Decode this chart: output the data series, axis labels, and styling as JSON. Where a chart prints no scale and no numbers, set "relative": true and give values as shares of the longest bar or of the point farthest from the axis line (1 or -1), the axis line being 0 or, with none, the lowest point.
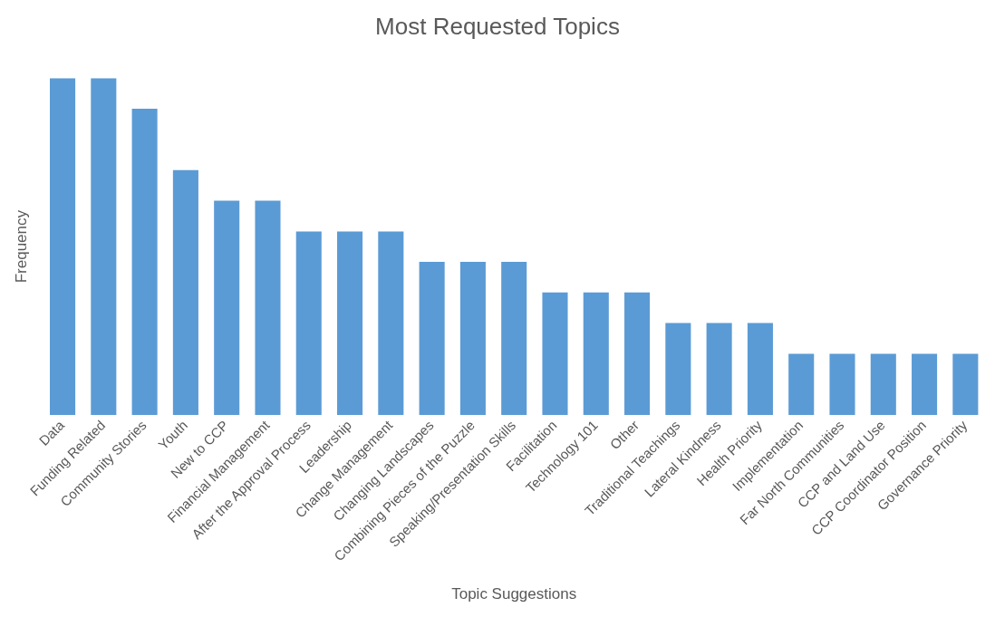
{
  "chart_data": {
    "type": "bar",
    "title": "Most Requested Topics",
    "xlabel": "Topic Suggestions",
    "ylabel": "Frequency",
    "relative": true,
    "color": "#5b9bd5",
    "legend": false,
    "grid": false,
    "categories": [
      "Data",
      "Funding Related",
      "Community Stories",
      "Youth",
      "New to CCP",
      "Financial Management",
      "After the Approval Process",
      "Leadership",
      "Change Management",
      "Changing Landscapes",
      "Combining Pieces of the Puzzle",
      "Speaking/Presentation Skills",
      "Facilitation",
      "Technology 101",
      "Other",
      "Traditional Teachings",
      "Lateral Kindness",
      "Health Priority",
      "Implementation",
      "Far North Communities",
      "CCP and Land Use",
      "CCP Coordinator Position",
      "Governance Priority"
    ],
    "values": [
      1,
      1,
      0.909,
      0.727,
      0.636,
      0.636,
      0.545,
      0.545,
      0.545,
      0.455,
      0.455,
      0.455,
      0.364,
      0.364,
      0.364,
      0.273,
      0.273,
      0.273,
      0.182,
      0.182,
      0.182,
      0.182,
      0.182
    ]
  }
}
